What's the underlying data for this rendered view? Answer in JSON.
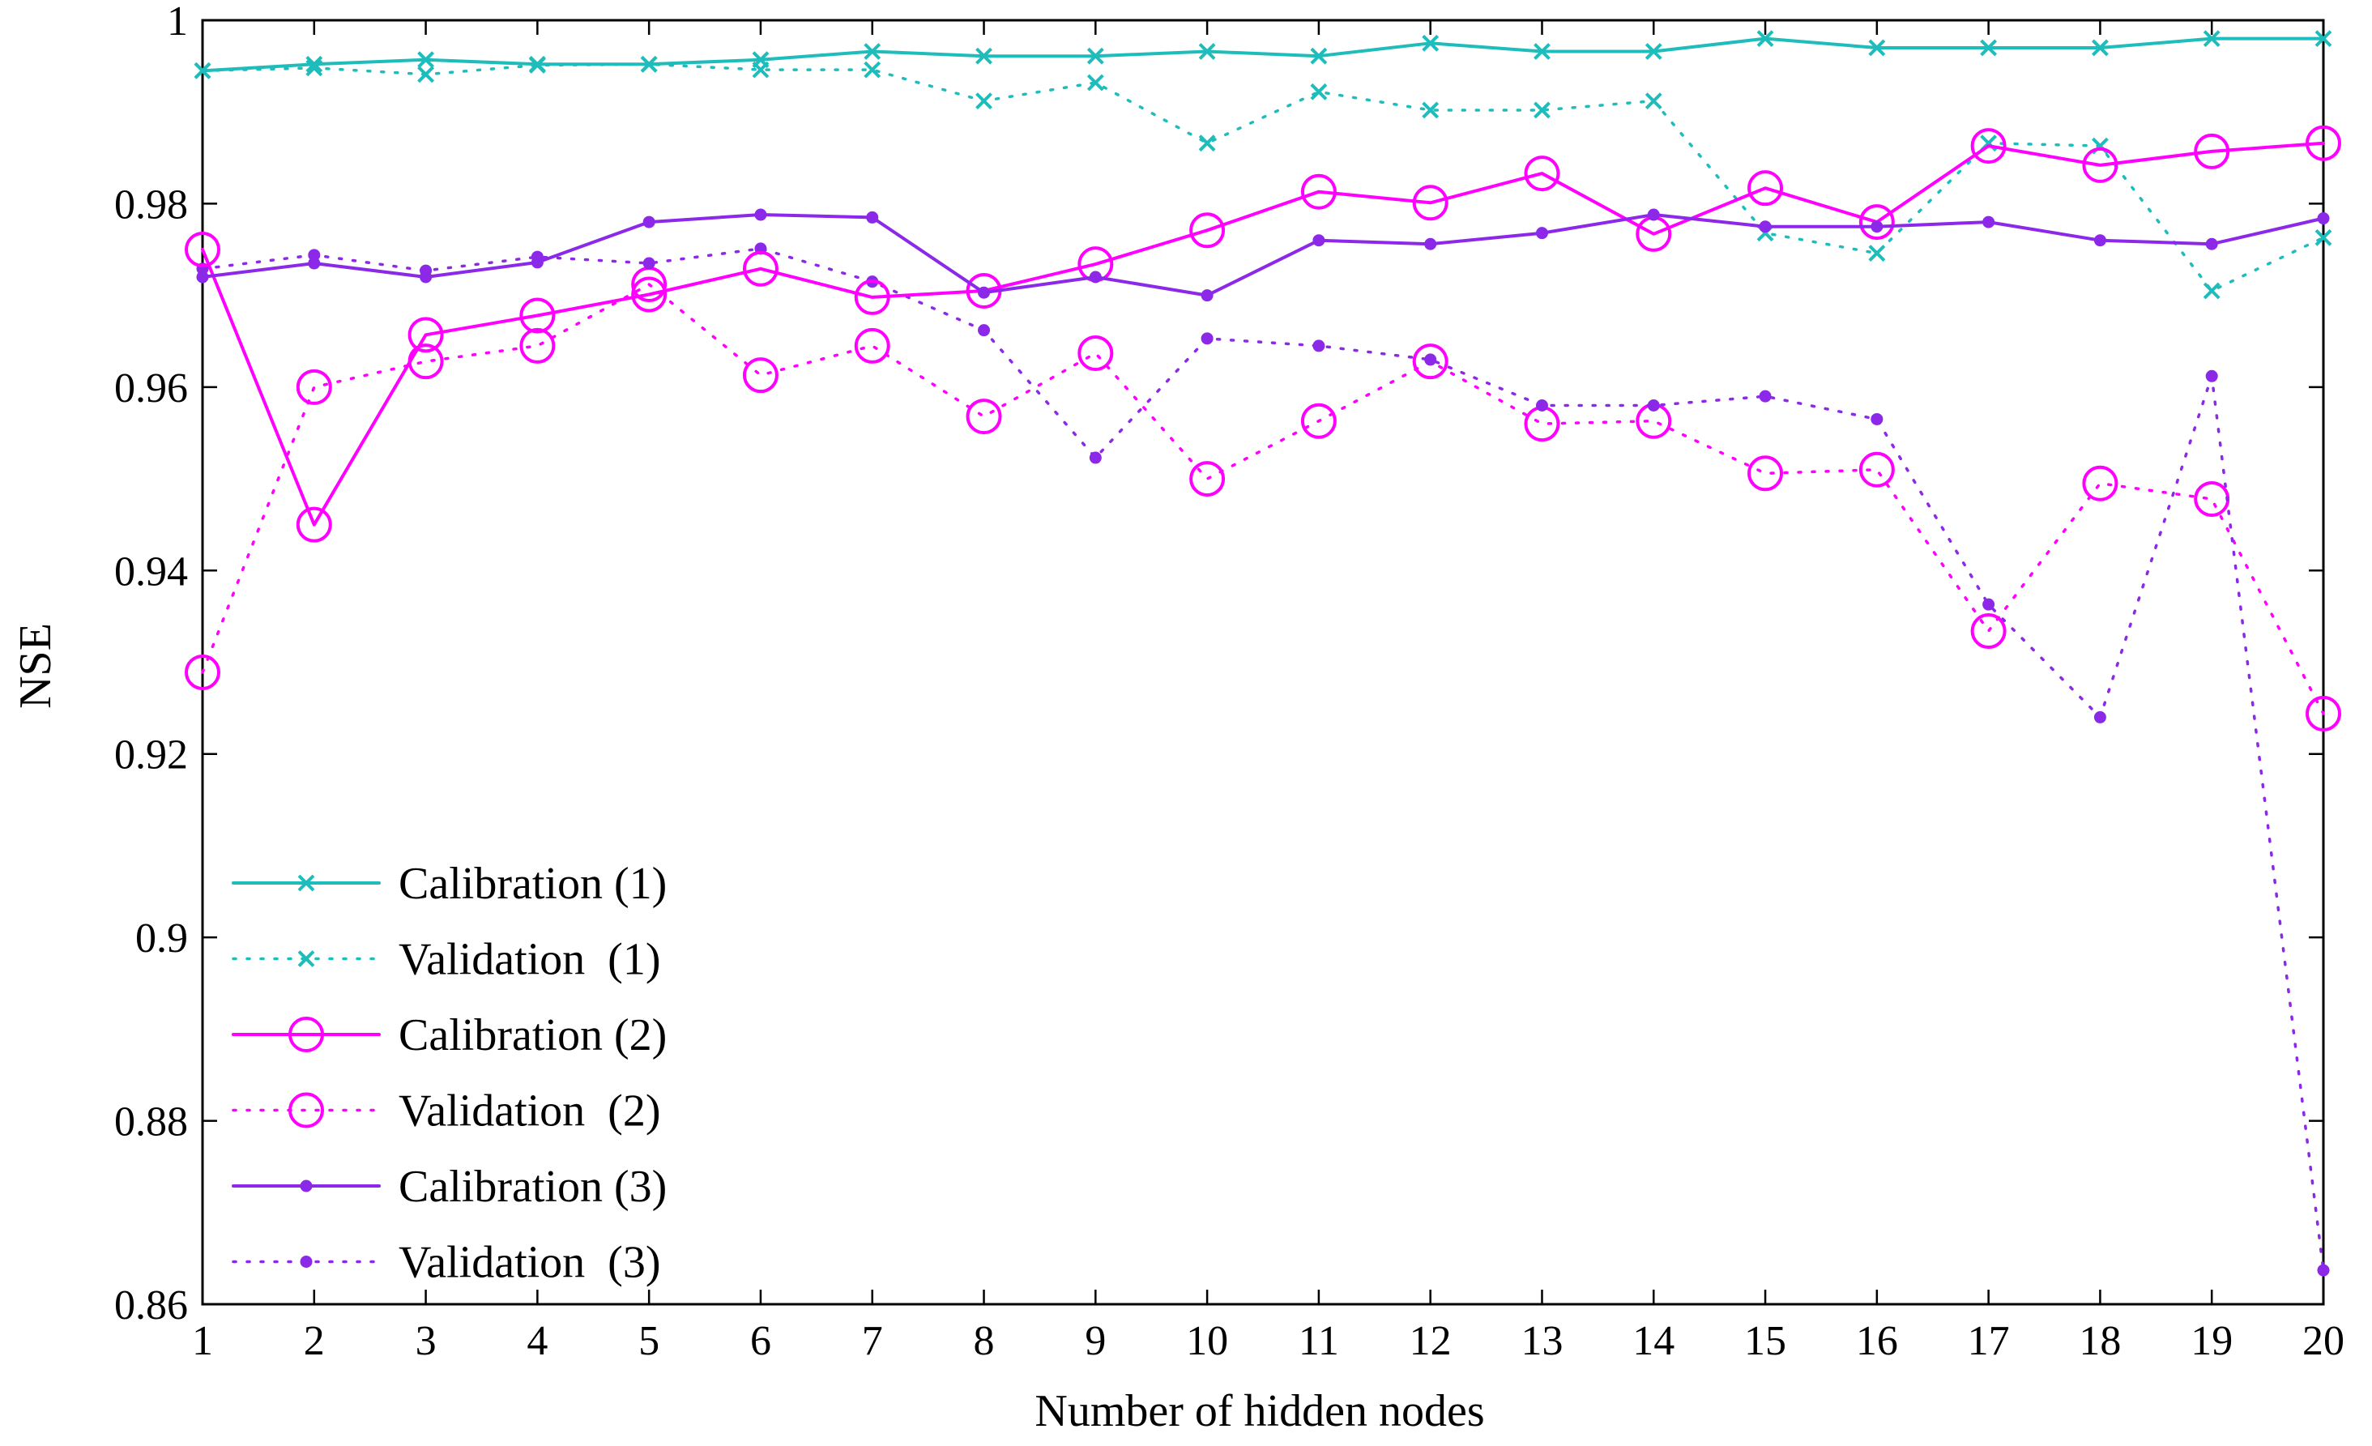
{
  "chart_data": {
    "type": "line",
    "title": "",
    "xlabel": "Number of hidden nodes",
    "ylabel": "NSE",
    "xlim": [
      1,
      20
    ],
    "ylim": [
      0.86,
      1
    ],
    "xticks": [
      1,
      2,
      3,
      4,
      5,
      6,
      7,
      8,
      9,
      10,
      11,
      12,
      13,
      14,
      15,
      16,
      17,
      18,
      19,
      20
    ],
    "yticks": [
      0.86,
      0.88,
      0.9,
      0.92,
      0.94,
      0.96,
      0.98,
      1
    ],
    "ytick_labels": [
      "0.86",
      "0.88",
      "0.9",
      "0.92",
      "0.94",
      "0.96",
      "0.98",
      "1"
    ],
    "grid": false,
    "legend_position": "bottom-left",
    "x": [
      1,
      2,
      3,
      4,
      5,
      6,
      7,
      8,
      9,
      10,
      11,
      12,
      13,
      14,
      15,
      16,
      17,
      18,
      19,
      20
    ],
    "series": [
      {
        "name": "Calibration (1)",
        "color": "#1fbcbc",
        "line": "solid",
        "marker": "x",
        "values": [
          0.9945,
          0.9952,
          0.9957,
          0.9952,
          0.9952,
          0.9957,
          0.9966,
          0.9961,
          0.9961,
          0.9966,
          0.9961,
          0.9975,
          0.9966,
          0.9966,
          0.998,
          0.997,
          0.997,
          0.997,
          0.998,
          0.998
        ]
      },
      {
        "name": "Validation  (1)",
        "color": "#1fbcbc",
        "line": "dotted",
        "marker": "x",
        "values": [
          0.9945,
          0.9948,
          0.9941,
          0.9951,
          0.9952,
          0.9946,
          0.9946,
          0.9912,
          0.9932,
          0.9866,
          0.9922,
          0.9902,
          0.9902,
          0.9912,
          0.9768,
          0.9746,
          0.9866,
          0.9863,
          0.9705,
          0.9763
        ]
      },
      {
        "name": "Calibration (2)",
        "color": "#ff00ff",
        "line": "solid",
        "marker": "circle",
        "values": [
          0.975,
          0.945,
          0.9657,
          0.9678,
          0.9701,
          0.9729,
          0.9698,
          0.9705,
          0.9734,
          0.9771,
          0.9813,
          0.9801,
          0.9833,
          0.9767,
          0.9817,
          0.978,
          0.9863,
          0.9842,
          0.9857,
          0.9866
        ]
      },
      {
        "name": "Validation  (2)",
        "color": "#ff00ff",
        "line": "dotted",
        "marker": "circle",
        "values": [
          0.9289,
          0.96,
          0.9628,
          0.9645,
          0.9712,
          0.9613,
          0.9645,
          0.9568,
          0.9637,
          0.95,
          0.9563,
          0.9628,
          0.956,
          0.9563,
          0.9506,
          0.951,
          0.9334,
          0.9495,
          0.9478,
          0.9244
        ]
      },
      {
        "name": "Calibration (3)",
        "color": "#8c28e8",
        "line": "solid",
        "marker": "dot",
        "values": [
          0.972,
          0.9735,
          0.972,
          0.9736,
          0.978,
          0.9788,
          0.9785,
          0.9703,
          0.972,
          0.97,
          0.976,
          0.9756,
          0.9768,
          0.9788,
          0.9775,
          0.9775,
          0.978,
          0.976,
          0.9756,
          0.9784
        ]
      },
      {
        "name": "Validation  (3)",
        "color": "#8c28e8",
        "line": "dotted",
        "marker": "dot",
        "values": [
          0.9729,
          0.9744,
          0.9727,
          0.9742,
          0.9735,
          0.9751,
          0.9715,
          0.9662,
          0.9523,
          0.9653,
          0.9645,
          0.963,
          0.958,
          0.958,
          0.959,
          0.9565,
          0.9363,
          0.924,
          0.9612,
          0.8637
        ]
      }
    ]
  }
}
